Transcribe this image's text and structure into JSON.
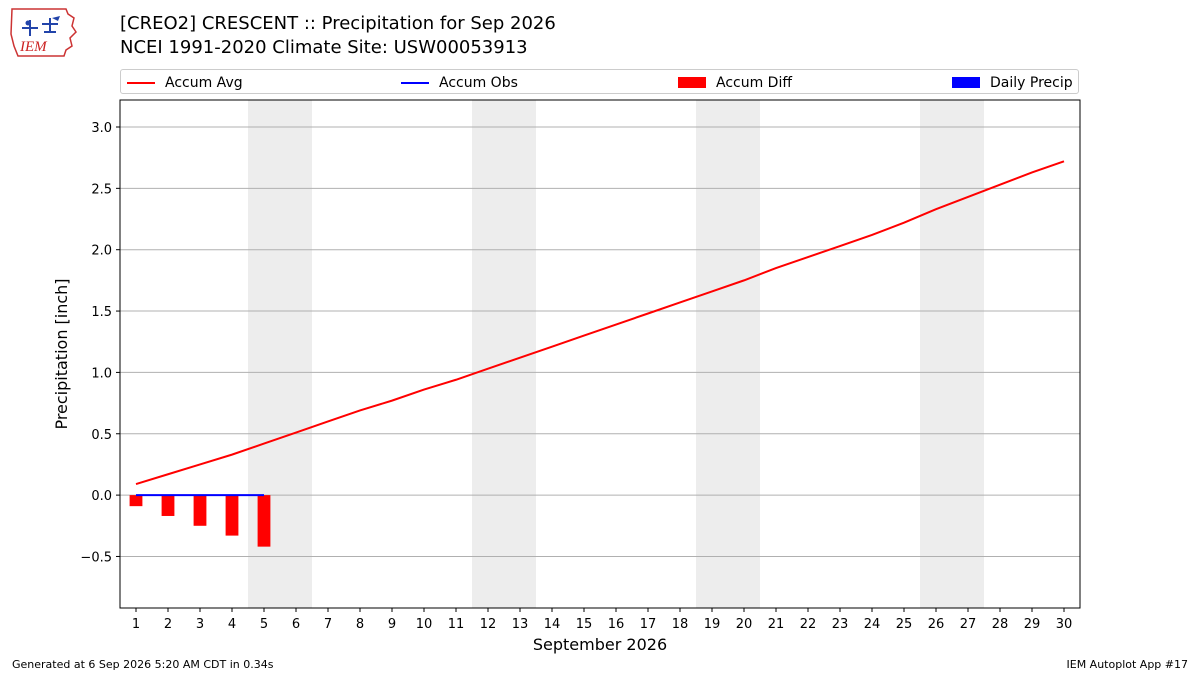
{
  "logo": {
    "text": "IEM"
  },
  "title": {
    "line1": "[CREO2] CRESCENT :: Precipitation for Sep 2026",
    "line2": "NCEI 1991-2020 Climate Site: USW00053913"
  },
  "legend": [
    {
      "label": "Accum Avg",
      "color": "#ff0000",
      "kind": "line"
    },
    {
      "label": "Accum Obs",
      "color": "#0000ff",
      "kind": "line"
    },
    {
      "label": "Accum Diff",
      "color": "#ff0000",
      "kind": "box"
    },
    {
      "label": "Daily Precip",
      "color": "#0000ff",
      "kind": "box"
    }
  ],
  "footer": {
    "left": "Generated at 6 Sep 2026 5:20 AM CDT in 0.34s",
    "right": "IEM Autoplot App #17"
  },
  "chart_data": {
    "type": "line",
    "xlabel": "September 2026",
    "ylabel": "Precipitation [inch]",
    "xlim": [
      0.5,
      30.5
    ],
    "ylim": [
      -0.92,
      3.22
    ],
    "yticks": [
      -0.5,
      0.0,
      0.5,
      1.0,
      1.5,
      2.0,
      2.5,
      3.0
    ],
    "ytick_labels": [
      "−0.5",
      "0.0",
      "0.5",
      "1.0",
      "1.5",
      "2.0",
      "2.5",
      "3.0"
    ],
    "x": [
      1,
      2,
      3,
      4,
      5,
      6,
      7,
      8,
      9,
      10,
      11,
      12,
      13,
      14,
      15,
      16,
      17,
      18,
      19,
      20,
      21,
      22,
      23,
      24,
      25,
      26,
      27,
      28,
      29,
      30
    ],
    "x_tick_labels": [
      "1",
      "2",
      "3",
      "4",
      "5",
      "6",
      "7",
      "8",
      "9",
      "10",
      "11",
      "12",
      "13",
      "14",
      "15",
      "16",
      "17",
      "18",
      "19",
      "20",
      "21",
      "22",
      "23",
      "24",
      "25",
      "26",
      "27",
      "28",
      "29",
      "30"
    ],
    "weekend_bands": [
      [
        4.5,
        6.5
      ],
      [
        11.5,
        13.5
      ],
      [
        18.5,
        20.5
      ],
      [
        25.5,
        27.5
      ]
    ],
    "grid": "y",
    "series": [
      {
        "name": "Accum Avg",
        "type": "line",
        "color": "#ff0000",
        "x": [
          1,
          2,
          3,
          4,
          5,
          6,
          7,
          8,
          9,
          10,
          11,
          12,
          13,
          14,
          15,
          16,
          17,
          18,
          19,
          20,
          21,
          22,
          23,
          24,
          25,
          26,
          27,
          28,
          29,
          30
        ],
        "values": [
          0.09,
          0.17,
          0.25,
          0.33,
          0.42,
          0.51,
          0.6,
          0.69,
          0.77,
          0.86,
          0.94,
          1.03,
          1.12,
          1.21,
          1.3,
          1.39,
          1.48,
          1.57,
          1.66,
          1.75,
          1.85,
          1.94,
          2.03,
          2.12,
          2.22,
          2.33,
          2.43,
          2.53,
          2.63,
          2.72
        ]
      },
      {
        "name": "Accum Obs",
        "type": "line",
        "color": "#0000ff",
        "x": [
          1,
          2,
          3,
          4,
          5
        ],
        "values": [
          0.0,
          0.0,
          0.0,
          0.0,
          0.0
        ]
      },
      {
        "name": "Accum Diff",
        "type": "bar",
        "color": "#ff0000",
        "x": [
          1,
          2,
          3,
          4,
          5
        ],
        "values": [
          -0.09,
          -0.17,
          -0.25,
          -0.33,
          -0.42
        ]
      },
      {
        "name": "Daily Precip",
        "type": "bar",
        "color": "#0000ff",
        "x": [
          1,
          2,
          3,
          4,
          5
        ],
        "values": [
          0.0,
          0.0,
          0.0,
          0.0,
          0.0
        ]
      }
    ]
  }
}
